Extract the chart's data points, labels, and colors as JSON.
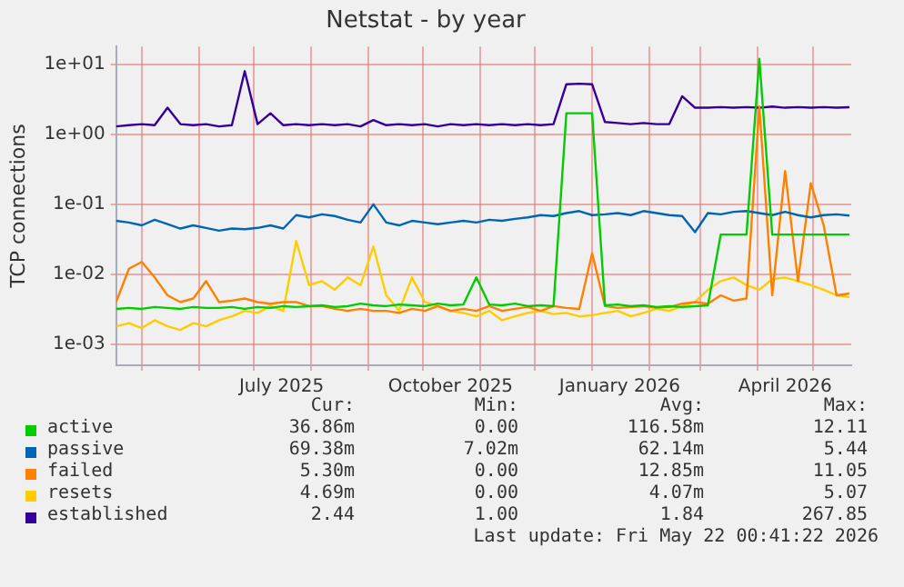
{
  "chart_data": {
    "type": "line",
    "title": "Netstat - by year",
    "ylabel": "TCP connections",
    "log": "y",
    "grid": true,
    "legend": "bottom",
    "marker": "none",
    "line_style": "solid",
    "x": [
      "2025-04-17",
      "2025-04-24",
      "2025-05-01",
      "2025-05-08",
      "2025-05-15",
      "2025-05-22",
      "2025-05-29",
      "2025-06-05",
      "2025-06-12",
      "2025-06-19",
      "2025-06-26",
      "2025-07-03",
      "2025-07-10",
      "2025-07-17",
      "2025-07-24",
      "2025-07-31",
      "2025-08-07",
      "2025-08-14",
      "2025-08-21",
      "2025-08-28",
      "2025-09-04",
      "2025-09-11",
      "2025-09-18",
      "2025-09-25",
      "2025-10-02",
      "2025-10-09",
      "2025-10-16",
      "2025-10-23",
      "2025-10-30",
      "2025-11-06",
      "2025-11-13",
      "2025-11-20",
      "2025-11-27",
      "2025-12-04",
      "2025-12-11",
      "2025-12-18",
      "2025-12-25",
      "2026-01-01",
      "2026-01-08",
      "2026-01-15",
      "2026-01-22",
      "2026-01-29",
      "2026-02-05",
      "2026-02-12",
      "2026-02-19",
      "2026-02-26",
      "2026-03-05",
      "2026-03-12",
      "2026-03-19",
      "2026-03-26",
      "2026-04-02",
      "2026-04-09",
      "2026-04-16",
      "2026-04-23",
      "2026-04-30",
      "2026-05-07",
      "2026-05-14",
      "2026-05-21"
    ],
    "series": [
      {
        "name": "active",
        "color": "#00cc00",
        "values": [
          0.0032,
          0.0033,
          0.0032,
          0.0034,
          0.0033,
          0.0032,
          0.0034,
          0.0033,
          0.0033,
          0.0034,
          0.0032,
          0.0034,
          0.0033,
          0.0035,
          0.0034,
          0.0035,
          0.0036,
          0.0034,
          0.0035,
          0.0038,
          0.0036,
          0.0035,
          0.0037,
          0.0036,
          0.0035,
          0.0038,
          0.0036,
          0.0037,
          0.009,
          0.0037,
          0.0036,
          0.0038,
          0.0035,
          0.0036,
          0.0035,
          2.0,
          2.0,
          2.0,
          0.0036,
          0.0037,
          0.0035,
          0.0036,
          0.0034,
          0.0035,
          0.0034,
          0.0035,
          0.0036,
          0.037,
          0.037,
          0.037,
          12.0,
          0.037,
          0.037,
          0.037,
          0.037,
          0.037,
          0.037,
          0.037
        ]
      },
      {
        "name": "passive",
        "color": "#0066b3",
        "values": [
          0.058,
          0.055,
          0.05,
          0.06,
          0.052,
          0.045,
          0.05,
          0.046,
          0.042,
          0.045,
          0.044,
          0.046,
          0.05,
          0.045,
          0.07,
          0.065,
          0.072,
          0.068,
          0.06,
          0.055,
          0.1,
          0.055,
          0.05,
          0.058,
          0.055,
          0.052,
          0.055,
          0.058,
          0.055,
          0.06,
          0.058,
          0.062,
          0.065,
          0.07,
          0.068,
          0.075,
          0.08,
          0.07,
          0.072,
          0.075,
          0.07,
          0.08,
          0.075,
          0.07,
          0.068,
          0.04,
          0.075,
          0.072,
          0.078,
          0.08,
          0.075,
          0.07,
          0.078,
          0.07,
          0.065,
          0.07,
          0.072,
          0.069
        ]
      },
      {
        "name": "failed",
        "color": "#ff8000",
        "values": [
          0.004,
          0.012,
          0.015,
          0.009,
          0.005,
          0.004,
          0.0045,
          0.008,
          0.004,
          0.0042,
          0.0045,
          0.004,
          0.0038,
          0.004,
          0.004,
          0.0035,
          0.0035,
          0.0032,
          0.003,
          0.0032,
          0.003,
          0.003,
          0.0028,
          0.0032,
          0.003,
          0.0035,
          0.003,
          0.0032,
          0.003,
          0.0035,
          0.003,
          0.0032,
          0.0034,
          0.003,
          0.0035,
          0.0033,
          0.0032,
          0.02,
          0.0035,
          0.0033,
          0.0034,
          0.0035,
          0.0033,
          0.0034,
          0.0038,
          0.004,
          0.0038,
          0.005,
          0.0042,
          0.0045,
          2.5,
          0.005,
          0.3,
          0.008,
          0.2,
          0.05,
          0.005,
          0.0053
        ]
      },
      {
        "name": "resets",
        "color": "#ffcc00",
        "values": [
          0.0018,
          0.002,
          0.0017,
          0.0022,
          0.0018,
          0.0016,
          0.002,
          0.0018,
          0.0022,
          0.0025,
          0.003,
          0.0028,
          0.0035,
          0.003,
          0.03,
          0.007,
          0.008,
          0.006,
          0.009,
          0.007,
          0.025,
          0.005,
          0.003,
          0.009,
          0.004,
          0.0035,
          0.003,
          0.0028,
          0.0025,
          0.003,
          0.0022,
          0.0025,
          0.0028,
          0.003,
          0.0027,
          0.0028,
          0.0025,
          0.0026,
          0.0028,
          0.003,
          0.0025,
          0.0028,
          0.0032,
          0.003,
          0.0035,
          0.004,
          0.006,
          0.008,
          0.009,
          0.007,
          0.006,
          0.0085,
          0.009,
          0.008,
          0.007,
          0.006,
          0.005,
          0.0047
        ]
      },
      {
        "name": "established",
        "color": "#330099",
        "values": [
          1.3,
          1.35,
          1.4,
          1.35,
          2.4,
          1.4,
          1.35,
          1.4,
          1.3,
          1.35,
          8.0,
          1.4,
          2.0,
          1.35,
          1.4,
          1.35,
          1.4,
          1.35,
          1.4,
          1.3,
          1.6,
          1.35,
          1.4,
          1.35,
          1.4,
          1.3,
          1.4,
          1.35,
          1.4,
          1.35,
          1.4,
          1.35,
          1.4,
          1.35,
          1.4,
          5.2,
          5.3,
          5.2,
          1.5,
          1.45,
          1.4,
          1.45,
          1.4,
          1.4,
          3.5,
          2.4,
          2.4,
          2.45,
          2.4,
          2.45,
          2.4,
          2.5,
          2.4,
          2.45,
          2.4,
          2.45,
          2.4,
          2.44
        ]
      }
    ],
    "xlim": [
      "2025-04-17",
      "2026-05-22"
    ],
    "xticks": [
      {
        "value": "2025-05-01",
        "label": null
      },
      {
        "value": "2025-06-01",
        "label": null
      },
      {
        "value": "2025-07-01",
        "label": null
      },
      {
        "value": "2025-07-16",
        "label": "July 2025"
      },
      {
        "value": "2025-08-01",
        "label": null
      },
      {
        "value": "2025-09-01",
        "label": null
      },
      {
        "value": "2025-10-01",
        "label": null
      },
      {
        "value": "2025-10-16",
        "label": "October 2025"
      },
      {
        "value": "2025-11-01",
        "label": null
      },
      {
        "value": "2025-12-01",
        "label": null
      },
      {
        "value": "2026-01-01",
        "label": null
      },
      {
        "value": "2026-01-16",
        "label": "January 2026"
      },
      {
        "value": "2026-02-01",
        "label": null
      },
      {
        "value": "2026-03-01",
        "label": null
      },
      {
        "value": "2026-04-01",
        "label": null
      },
      {
        "value": "2026-04-16",
        "label": "April 2026"
      },
      {
        "value": "2026-05-01",
        "label": null
      }
    ],
    "ylim": [
      0.0005,
      18
    ],
    "yticks": [
      {
        "value": 0.001,
        "label": "1e-03"
      },
      {
        "value": 0.01,
        "label": "1e-02"
      },
      {
        "value": 0.1,
        "label": "1e-01"
      },
      {
        "value": 1,
        "label": "1e+00"
      },
      {
        "value": 10,
        "label": "1e+01"
      }
    ],
    "annotations": [
      "Cur:",
      "Min:",
      "Avg:",
      "Max:",
      "36.86m",
      "0.00",
      "116.58m",
      "12.11",
      "69.38m",
      "7.02m",
      "62.14m",
      "5.44",
      "5.30m",
      "0.00",
      "12.85m",
      "11.05",
      "4.69m",
      "0.00",
      "4.07m",
      "5.07",
      "2.44",
      "1.00",
      "1.84",
      "267.85",
      "Last update: Fri May 22 00:41:22 2026"
    ]
  }
}
